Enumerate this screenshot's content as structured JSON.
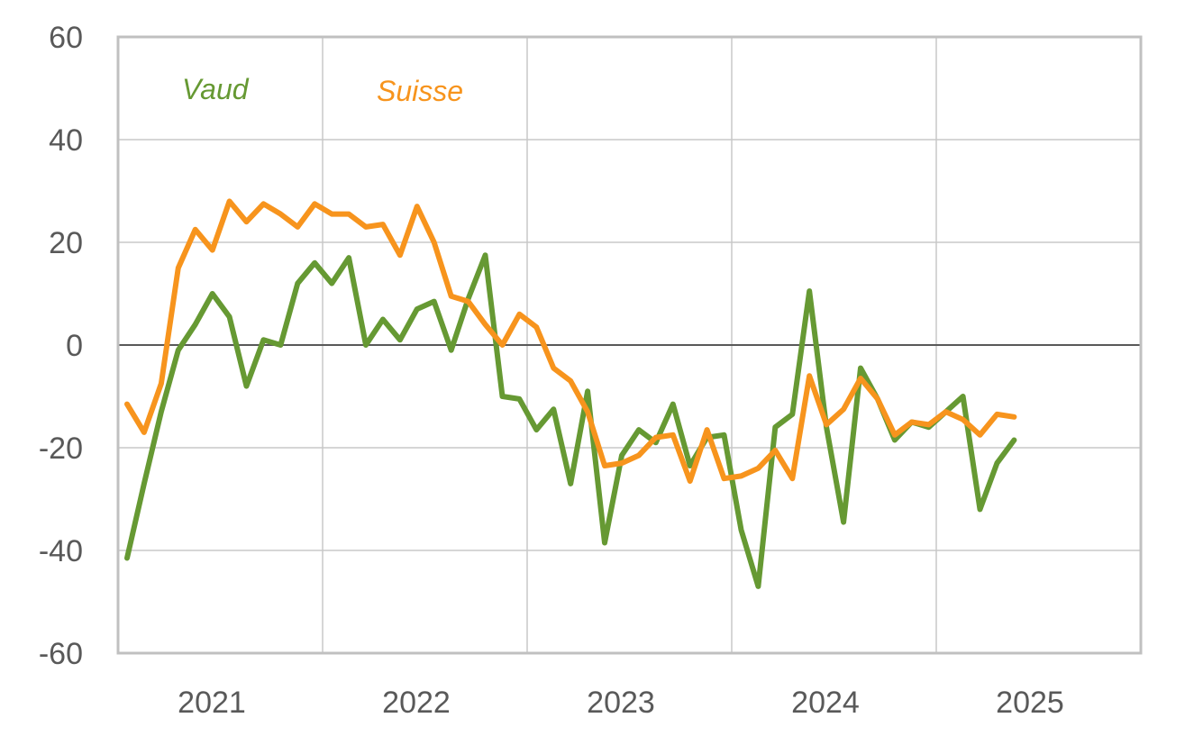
{
  "chart_data": {
    "type": "line",
    "title": "",
    "xlabel": "",
    "ylabel": "",
    "ylim": [
      -60,
      60
    ],
    "yticks": [
      "60",
      "40",
      "20",
      "0",
      "-20",
      "-40",
      "-60"
    ],
    "xticks": [
      "2021",
      "2022",
      "2023",
      "2024",
      "2025"
    ],
    "grid": true,
    "series": [
      {
        "name": "Vaud",
        "color": "#669933",
        "values": [
          -41.5,
          -27,
          -13,
          -1,
          4,
          10,
          5.5,
          -8,
          1,
          0,
          12,
          16,
          12,
          17,
          0,
          5,
          1,
          7,
          8.5,
          -1,
          9,
          17.5,
          -10,
          -10.5,
          -16.5,
          -12.5,
          -27,
          -9,
          -38.5,
          -21.5,
          -16.5,
          -19,
          -11.5,
          -23.5,
          -18,
          -17.5,
          -36,
          -47,
          -16,
          -13.5,
          10.5,
          -16,
          -34.5,
          -4.5,
          -10.5,
          -18.5,
          -15,
          -16,
          -13,
          -10,
          -32,
          -23,
          -18.5
        ]
      },
      {
        "name": "Suisse",
        "color": "#f7941d",
        "values": [
          -11.5,
          -17,
          -7.5,
          15,
          22.5,
          18.5,
          28,
          24,
          27.5,
          25.5,
          23,
          27.5,
          25.5,
          25.5,
          23,
          23.5,
          17.5,
          27,
          20,
          9.5,
          8.5,
          4,
          0,
          6,
          3.5,
          -4.5,
          -7,
          -13,
          -23.5,
          -23,
          -21.5,
          -18,
          -17.5,
          -26.5,
          -16.5,
          -26,
          -25.5,
          -24,
          -20.5,
          -26,
          -6,
          -15.5,
          -12.5,
          -6.5,
          -10.5,
          -17.5,
          -15,
          -15.5,
          -13,
          -14.5,
          -17.5,
          -13.5,
          -14
        ]
      }
    ]
  }
}
